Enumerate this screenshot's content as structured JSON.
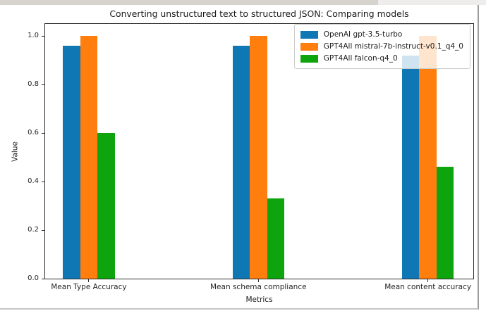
{
  "page": {
    "top_strip_left_color": "#d5d3cb",
    "top_strip_right_color": "#eeedeb"
  },
  "chart_data": {
    "type": "bar",
    "title": "Converting unstructured text to structured JSON: Comparing models",
    "xlabel": "Metrics",
    "ylabel": "Value",
    "categories": [
      "Mean Type Accuracy",
      "Mean schema compliance",
      "Mean content accuracy"
    ],
    "series": [
      {
        "name": "OpenAI gpt-3.5-turbo",
        "color": "#0f77b4",
        "values": [
          0.96,
          0.96,
          0.92
        ]
      },
      {
        "name": "GPT4All mistral-7b-instruct-v0.1_q4_0",
        "color": "#ff7e0d",
        "values": [
          1.0,
          1.0,
          1.0
        ]
      },
      {
        "name": "GPT4All falcon-q4_0",
        "color": "#0da40d",
        "values": [
          0.6,
          0.33,
          0.46
        ]
      }
    ],
    "ylim": [
      0,
      1.05
    ],
    "yticks": [
      "0.0",
      "0.2",
      "0.4",
      "0.6",
      "0.8",
      "1.0"
    ],
    "legend_position": "upper right",
    "grid": false,
    "legend_background_alpha": 0.8
  }
}
